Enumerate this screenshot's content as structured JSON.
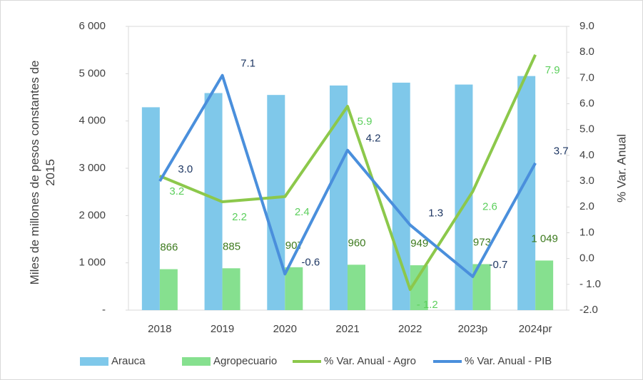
{
  "chart_data": {
    "type": "bar_line",
    "ylabel": "Miles de millones de pesos constantes de 2015",
    "y2label": "% Var. Anual",
    "categories": [
      "2018",
      "2019",
      "2020",
      "2021",
      "2022",
      "2023p",
      "2024pr"
    ],
    "ylim": [
      0,
      6000
    ],
    "yticks": [
      {
        "value": 0,
        "label": "-"
      },
      {
        "value": 1000,
        "label": "1 000"
      },
      {
        "value": 2000,
        "label": "2 000"
      },
      {
        "value": 3000,
        "label": "3 000"
      },
      {
        "value": 4000,
        "label": "4 000"
      },
      {
        "value": 5000,
        "label": "5 000"
      },
      {
        "value": 6000,
        "label": "6 000"
      }
    ],
    "y2lim": [
      -2,
      9
    ],
    "y2ticks": [
      {
        "value": -2,
        "label": "-2.0"
      },
      {
        "value": -1,
        "label": "- 1.0"
      },
      {
        "value": 0,
        "label": "0.0"
      },
      {
        "value": 1,
        "label": "1.0"
      },
      {
        "value": 2,
        "label": "2.0"
      },
      {
        "value": 3,
        "label": "3.0"
      },
      {
        "value": 4,
        "label": "4.0"
      },
      {
        "value": 5,
        "label": "5.0"
      },
      {
        "value": 6,
        "label": "6.0"
      },
      {
        "value": 7,
        "label": "7.0"
      },
      {
        "value": 8,
        "label": "8.0"
      },
      {
        "value": 9,
        "label": "9.0"
      }
    ],
    "series": [
      {
        "name": "Arauca",
        "type": "bar",
        "color": "#7fc8ea",
        "values": [
          4290,
          4590,
          4550,
          4750,
          4810,
          4770,
          4950
        ]
      },
      {
        "name": "Agropecuario",
        "type": "bar",
        "color": "#86e08f",
        "label_color": "#3d7a1e",
        "values": [
          866,
          885,
          907,
          960,
          949,
          973,
          1049
        ],
        "value_labels": [
          "866",
          "885",
          "907",
          "960",
          "949",
          "973",
          "1 049"
        ]
      },
      {
        "name": "% Var. Anual - Agro",
        "type": "line",
        "axis": "y2",
        "color": "#8cc84b",
        "label_color": "#5ccf5c",
        "values": [
          3.2,
          2.2,
          2.4,
          5.9,
          -1.2,
          2.6,
          7.9
        ],
        "value_labels": [
          "3.2",
          "2.2",
          "2.4",
          "5.9",
          "- 1.2",
          "2.6",
          "7.9"
        ]
      },
      {
        "name": "% Var. Anual - PIB",
        "type": "line",
        "axis": "y2",
        "color": "#4a8fdc",
        "label_color": "#1f3864",
        "values": [
          3.0,
          7.1,
          -0.6,
          4.2,
          1.3,
          -0.7,
          3.7
        ],
        "value_labels": [
          "3.0",
          "7.1",
          "-0.6",
          "4.2",
          "1.3",
          "-0.7",
          "3.7"
        ]
      }
    ]
  }
}
